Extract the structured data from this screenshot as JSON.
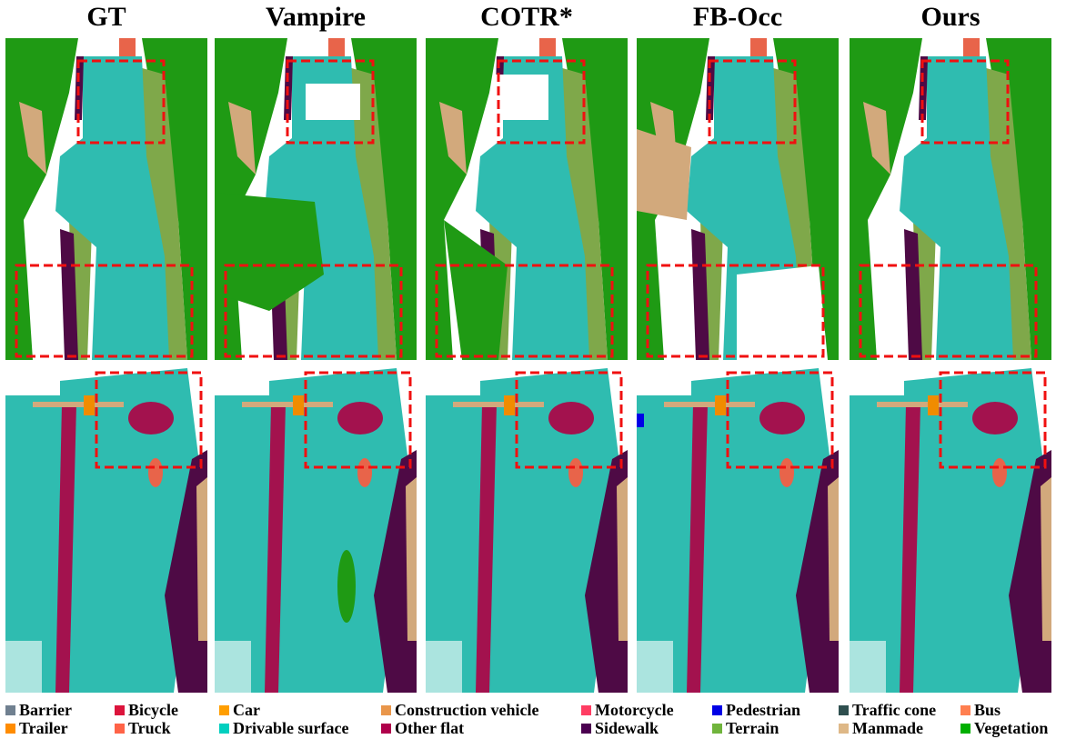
{
  "columns": [
    {
      "title": "GT",
      "variant": "gt"
    },
    {
      "title": "Vampire",
      "variant": "vampire"
    },
    {
      "title": "COTR*",
      "variant": "cotr"
    },
    {
      "title": "FB-Occ",
      "variant": "fbocc"
    },
    {
      "title": "Ours",
      "variant": "ours"
    }
  ],
  "legend": [
    {
      "label": "Barrier",
      "color": "#708090"
    },
    {
      "label": "Bicycle",
      "color": "#DC143C"
    },
    {
      "label": "Car",
      "color": "#FF9E00"
    },
    {
      "label": "Construction vehicle",
      "color": "#E9964A"
    },
    {
      "label": "Motorcycle",
      "color": "#FF3D63"
    },
    {
      "label": "Pedestrian",
      "color": "#0000E6"
    },
    {
      "label": "Traffic cone",
      "color": "#2F4F4F"
    },
    {
      "label": "Bus",
      "color": "#FF7F50"
    },
    {
      "label": "Trailer",
      "color": "#FF8C00"
    },
    {
      "label": "Truck",
      "color": "#FF6347"
    },
    {
      "label": "Drivable surface",
      "color": "#00CFBF"
    },
    {
      "label": "Other flat",
      "color": "#AF004B"
    },
    {
      "label": "Sidewalk",
      "color": "#4B0050"
    },
    {
      "label": "Terrain",
      "color": "#70B43C"
    },
    {
      "label": "Manmade",
      "color": "#DEB887"
    },
    {
      "label": "Vegetation",
      "color": "#00AF00"
    }
  ]
}
